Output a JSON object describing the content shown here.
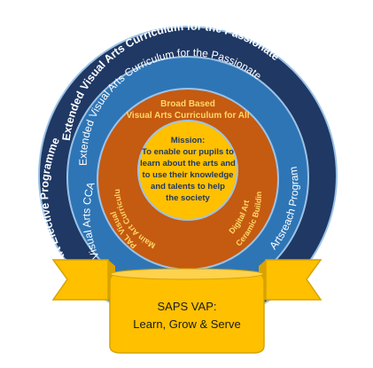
{
  "rings": {
    "outer": {
      "top_label": "Extended Visual Arts Curriculum for the Passionate",
      "left_label": "Art Elective Programme",
      "color": "#1f3864"
    },
    "second": {
      "top_label": "Extended Visual Arts Curriculum for the Passionate",
      "left_label": "Visual Arts CCA",
      "right_label": "Artsreach Programme",
      "color": "#2e75b6"
    },
    "third": {
      "top_line1": "Broad Based",
      "top_line2": "Visual Arts Curriculum for All",
      "left_line1": "Main Art Curriculum",
      "left_line2": "PAL Visual",
      "right_line1": "Digital Art",
      "right_line2": "Ceramic Building",
      "color": "#c55a11",
      "text_color": "#ffd966"
    },
    "center": {
      "lines": [
        "Mission:",
        "To enable our pupils to",
        "learn about the arts and",
        "to use their knowledge",
        "and talents to help",
        "the society"
      ],
      "color": "#ffc000",
      "text_color": "#1f3864"
    }
  },
  "banner": {
    "line1": "SAPS VAP:",
    "line2": "Learn, Grow & Serve",
    "color": "#ffc000",
    "border": "#d6a300"
  }
}
